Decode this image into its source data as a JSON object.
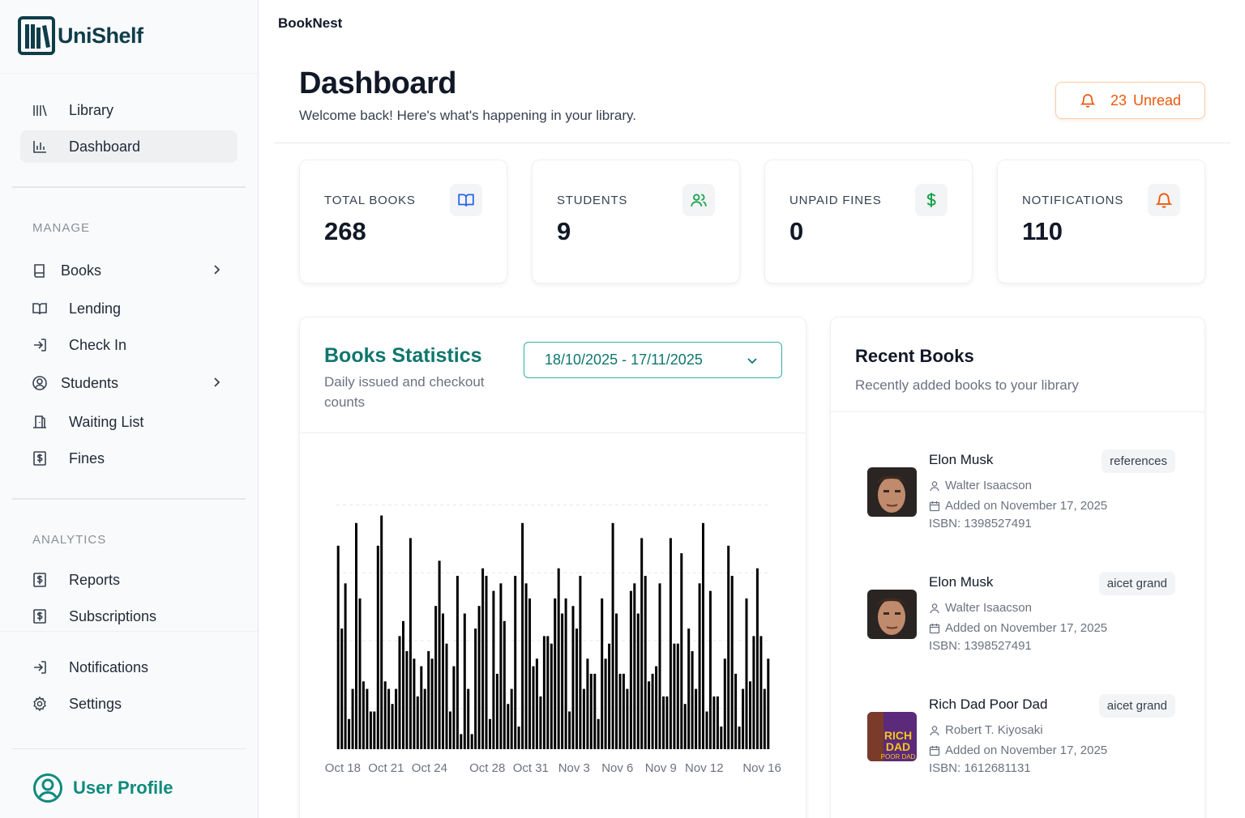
{
  "app": {
    "logo_text": "UniShelf",
    "brand": "BookNest",
    "accent": "#0f766e",
    "alert_color": "#ea580c"
  },
  "sidebar": {
    "top_items": [
      {
        "label": "Library",
        "icon": "library-icon"
      },
      {
        "label": "Dashboard",
        "icon": "bar-chart-icon",
        "active": true
      }
    ],
    "manage_label": "MANAGE",
    "manage_items": [
      {
        "label": "Books",
        "icon": "book-icon",
        "has_children": true
      },
      {
        "label": "Lending",
        "icon": "open-book-icon"
      },
      {
        "label": "Check In",
        "icon": "log-in-icon"
      },
      {
        "label": "Students",
        "icon": "user-circle-icon",
        "has_children": true
      },
      {
        "label": "Waiting List",
        "icon": "door-icon"
      },
      {
        "label": "Fines",
        "icon": "dollar-receipt-icon"
      }
    ],
    "analytics_label": "ANALYTICS",
    "analytics_items": [
      {
        "label": "Reports",
        "icon": "dollar-receipt-icon"
      },
      {
        "label": "Subscriptions",
        "icon": "dollar-receipt-icon"
      }
    ],
    "bottom_items": [
      {
        "label": "Notifications",
        "icon": "log-in-icon"
      },
      {
        "label": "Settings",
        "icon": "gear-icon"
      }
    ],
    "user_profile_label": "User Profile"
  },
  "header": {
    "title": "Dashboard",
    "subtitle": "Welcome back! Here's what's happening in your library.",
    "unread_count": "23",
    "unread_label": "Unread"
  },
  "stats": [
    {
      "label": "TOTAL BOOKS",
      "value": "268",
      "icon": "open-book-icon",
      "color": "#2563eb"
    },
    {
      "label": "STUDENTS",
      "value": "9",
      "icon": "users-icon",
      "color": "#16a34a"
    },
    {
      "label": "UNPAID FINES",
      "value": "0",
      "icon": "dollar-icon",
      "color": "#16a34a"
    },
    {
      "label": "NOTIFICATIONS",
      "value": "110",
      "icon": "bell-icon",
      "color": "#ea580c"
    }
  ],
  "books_statistics": {
    "title": "Books Statistics",
    "subtitle": "Daily issued and checkout counts",
    "date_range": "18/10/2025 - 17/11/2025"
  },
  "chart_data": {
    "type": "bar",
    "x_tick_labels": [
      "Oct 18",
      "Oct 21",
      "Oct 24",
      "Oct 28",
      "Oct 31",
      "Nov 3",
      "Nov 6",
      "Nov 9",
      "Nov 12",
      "Nov 16"
    ],
    "categories": [
      "Oct 18",
      "Oct 19",
      "Oct 20",
      "Oct 21",
      "Oct 22",
      "Oct 23",
      "Oct 24",
      "Oct 25",
      "Oct 26",
      "Oct 27",
      "Oct 28",
      "Oct 29",
      "Oct 30",
      "Oct 31",
      "Nov 1",
      "Nov 2",
      "Nov 3",
      "Nov 4",
      "Nov 5",
      "Nov 6",
      "Nov 7",
      "Nov 8",
      "Nov 9",
      "Nov 10",
      "Nov 11",
      "Nov 12",
      "Nov 13",
      "Nov 14",
      "Nov 15",
      "Nov 16"
    ],
    "series": [
      {
        "values": [
          27,
          8,
          8,
          31,
          8,
          28,
          8,
          25,
          11,
          8,
          24,
          10,
          8,
          22,
          7,
          20,
          5,
          8,
          4,
          30,
          8,
          28,
          11,
          28,
          6,
          22,
          7,
          27,
          8,
          24
        ]
      },
      {
        "values": [
          16,
          30,
          5,
          9,
          15,
          12,
          13,
          18,
          23,
          2,
          23,
          22,
          23,
          20,
          15,
          24,
          19,
          12,
          20,
          18,
          21,
          23,
          22,
          14,
          16,
          30,
          7,
          23,
          20,
          15
        ]
      },
      {
        "values": [
          22,
          20,
          5,
          8,
          17,
          7,
          12,
          14,
          2,
          16,
          4,
          17,
          3,
          11,
          15,
          18,
          16,
          10,
          12,
          10,
          22,
          9,
          7,
          14,
          13,
          5,
          3,
          10,
          9,
          8
        ]
      },
      {
        "values": [
          4,
          9,
          27,
          6,
          13,
          11,
          19,
          5,
          18,
          19,
          21,
          6,
          30,
          12,
          14,
          20,
          23,
          10,
          14,
          10,
          18,
          10,
          7,
          26,
          8,
          21,
          12,
          3,
          15,
          12
        ]
      }
    ],
    "ylim": [
      0,
      36
    ],
    "grid": true,
    "bar_color": "#000000"
  },
  "recent_books": {
    "title": "Recent Books",
    "subtitle": "Recently added books to your library",
    "items": [
      {
        "title": "Elon Musk",
        "tag": "references",
        "author": "Walter Isaacson",
        "added": "Added on November 17, 2025",
        "isbn": "ISBN: 1398527491",
        "cover": "portrait"
      },
      {
        "title": "Elon Musk",
        "tag": "aicet grand",
        "author": "Walter Isaacson",
        "added": "Added on November 17, 2025",
        "isbn": "ISBN: 1398527491",
        "cover": "portrait"
      },
      {
        "title": "Rich Dad Poor Dad",
        "tag": "aicet grand",
        "author": "Robert T. Kiyosaki",
        "added": "Added on November 17, 2025",
        "isbn": "ISBN: 1612681131",
        "cover": "rich-dad",
        "cover_text": [
          "RICH",
          "DAD",
          "POOR DAD"
        ]
      }
    ]
  }
}
